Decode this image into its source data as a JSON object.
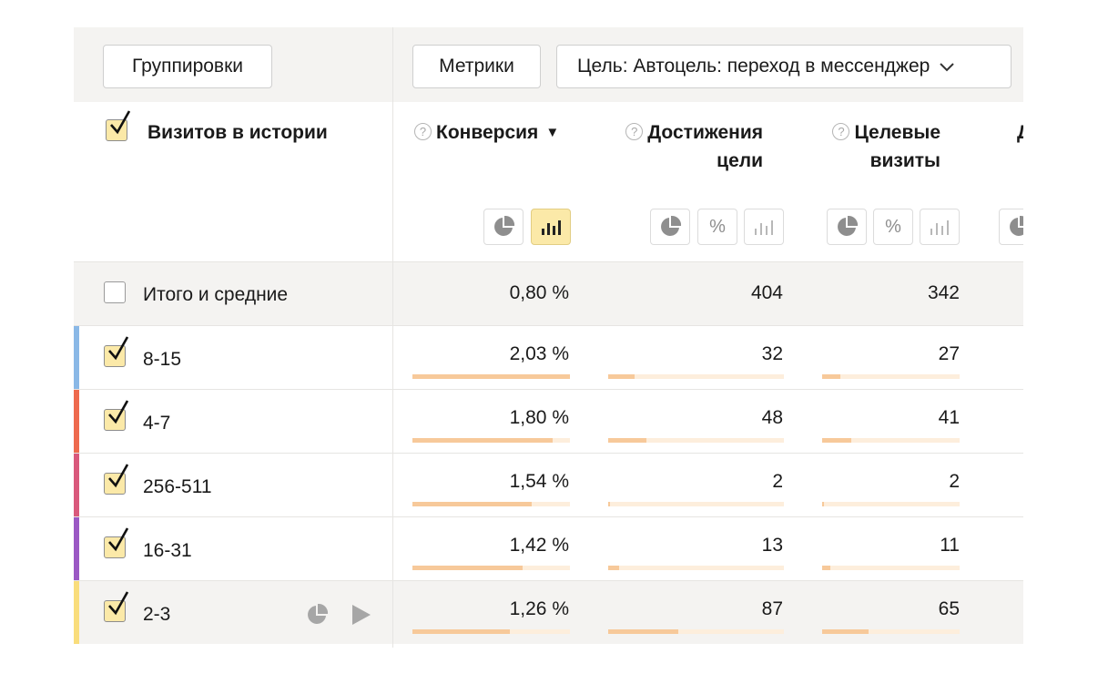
{
  "toolbar": {
    "groupings_label": "Группировки",
    "metrics_label": "Метрики",
    "goal_label": "Цель: Автоцель: переход в мессенджер"
  },
  "header": {
    "dimension": "Визитов в истории",
    "metrics": [
      {
        "label": "Конверсия",
        "sort": "▼"
      },
      {
        "label_line1": "Достижения",
        "label_line2": "цели"
      },
      {
        "label_line1": "Целевые",
        "label_line2": "визиты"
      },
      {
        "label": "Д"
      }
    ],
    "help_mark": "?",
    "percent_symbol": "%"
  },
  "totals": {
    "label": "Итого и средние",
    "values": [
      "0,80 %",
      "404",
      "342"
    ]
  },
  "rows": [
    {
      "label": "8-15",
      "color": "#8ab8e6",
      "values": [
        "2,03 %",
        "32",
        "27"
      ],
      "fills": [
        1.0,
        0.15,
        0.13
      ]
    },
    {
      "label": "4-7",
      "color": "#ee6a4e",
      "values": [
        "1,80 %",
        "48",
        "41"
      ],
      "fills": [
        0.89,
        0.22,
        0.21
      ]
    },
    {
      "label": "256-511",
      "color": "#d9597c",
      "values": [
        "1,54 %",
        "2",
        "2"
      ],
      "fills": [
        0.76,
        0.01,
        0.01
      ]
    },
    {
      "label": "16-31",
      "color": "#9b59c4",
      "values": [
        "1,42 %",
        "13",
        "11"
      ],
      "fills": [
        0.7,
        0.06,
        0.06
      ]
    },
    {
      "label": "2-3",
      "color": "#f9dd7c",
      "values": [
        "1,26 %",
        "87",
        "65"
      ],
      "fills": [
        0.62,
        0.4,
        0.34
      ]
    }
  ],
  "colors": {
    "accent_yellow": "#fbe9a8",
    "bar_fill": "#f7c99a",
    "bar_track": "#fdeedc",
    "gray_bg": "#f4f3f1"
  },
  "icons": [
    "pie-chart-icon",
    "bar-chart-icon",
    "percent-icon",
    "play-icon",
    "chevron-down-icon",
    "checkmark-icon",
    "help-icon"
  ]
}
